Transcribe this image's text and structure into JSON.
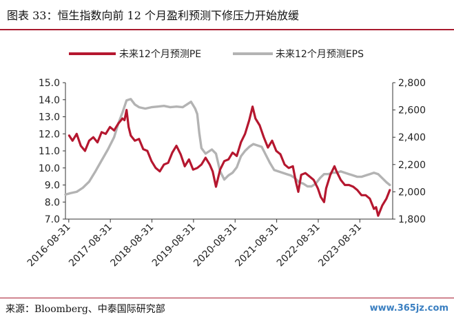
{
  "header": {
    "title": "图表 33：恒生指数向前 12 个月盈利预测下修压力开始放缓"
  },
  "footer": {
    "source": "来源：Bloomberg、中泰国际研究部",
    "watermark": "www.365jz.com"
  },
  "colors": {
    "pe": "#b5172f",
    "eps": "#b3b3b3",
    "accent": "#a8192e"
  },
  "chart_data": {
    "type": "line",
    "title": "",
    "legend_position": "top",
    "x_tick_labels": [
      "2016-08-31",
      "2017-08-31",
      "2018-08-31",
      "2019-08-31",
      "2020-08-31",
      "2021-08-31",
      "2022-08-31",
      "2023-08-31"
    ],
    "x_range": [
      2016.58,
      2024.45
    ],
    "left_axis": {
      "ylim": [
        7.0,
        15.0
      ],
      "tick_labels": [
        "15.0",
        "14.0",
        "13.0",
        "12.0",
        "11.0",
        "10.0",
        "9.0",
        "8.0",
        "7.0"
      ]
    },
    "right_axis": {
      "ylim": [
        1800,
        2800
      ],
      "tick_labels": [
        "2,800",
        "2,600",
        "2,400",
        "2,200",
        "2,000",
        "1,800"
      ]
    },
    "series": [
      {
        "name": "未来12个月预测PE",
        "axis": "left",
        "color": "#b5172f",
        "points": [
          [
            2016.67,
            11.9
          ],
          [
            2016.75,
            11.6
          ],
          [
            2016.85,
            12.0
          ],
          [
            2016.95,
            11.3
          ],
          [
            2017.05,
            11.0
          ],
          [
            2017.15,
            11.6
          ],
          [
            2017.25,
            11.8
          ],
          [
            2017.35,
            11.5
          ],
          [
            2017.45,
            12.1
          ],
          [
            2017.55,
            12.0
          ],
          [
            2017.65,
            12.4
          ],
          [
            2017.75,
            12.2
          ],
          [
            2017.85,
            12.6
          ],
          [
            2017.95,
            12.9
          ],
          [
            2018.0,
            12.8
          ],
          [
            2018.05,
            13.4
          ],
          [
            2018.1,
            12.4
          ],
          [
            2018.15,
            11.9
          ],
          [
            2018.25,
            11.6
          ],
          [
            2018.35,
            11.7
          ],
          [
            2018.45,
            11.1
          ],
          [
            2018.55,
            11.0
          ],
          [
            2018.65,
            10.4
          ],
          [
            2018.75,
            10.0
          ],
          [
            2018.85,
            9.8
          ],
          [
            2018.95,
            10.2
          ],
          [
            2019.05,
            10.3
          ],
          [
            2019.15,
            10.9
          ],
          [
            2019.25,
            11.3
          ],
          [
            2019.35,
            10.8
          ],
          [
            2019.45,
            10.1
          ],
          [
            2019.55,
            10.5
          ],
          [
            2019.65,
            9.9
          ],
          [
            2019.75,
            10.0
          ],
          [
            2019.85,
            10.2
          ],
          [
            2019.95,
            10.6
          ],
          [
            2020.05,
            10.2
          ],
          [
            2020.12,
            9.8
          ],
          [
            2020.2,
            8.9
          ],
          [
            2020.3,
            9.9
          ],
          [
            2020.4,
            10.4
          ],
          [
            2020.5,
            10.5
          ],
          [
            2020.6,
            10.9
          ],
          [
            2020.7,
            10.7
          ],
          [
            2020.8,
            11.5
          ],
          [
            2020.9,
            12.0
          ],
          [
            2021.0,
            12.8
          ],
          [
            2021.08,
            13.6
          ],
          [
            2021.15,
            12.9
          ],
          [
            2021.25,
            12.5
          ],
          [
            2021.35,
            11.8
          ],
          [
            2021.45,
            11.2
          ],
          [
            2021.55,
            11.6
          ],
          [
            2021.65,
            11.0
          ],
          [
            2021.75,
            10.8
          ],
          [
            2021.85,
            10.2
          ],
          [
            2021.95,
            10.0
          ],
          [
            2022.05,
            10.1
          ],
          [
            2022.12,
            9.2
          ],
          [
            2022.18,
            8.6
          ],
          [
            2022.25,
            9.6
          ],
          [
            2022.35,
            9.7
          ],
          [
            2022.45,
            9.5
          ],
          [
            2022.55,
            9.3
          ],
          [
            2022.65,
            8.8
          ],
          [
            2022.72,
            8.3
          ],
          [
            2022.8,
            8.0
          ],
          [
            2022.85,
            8.8
          ],
          [
            2022.95,
            9.6
          ],
          [
            2023.05,
            10.1
          ],
          [
            2023.1,
            9.8
          ],
          [
            2023.2,
            9.3
          ],
          [
            2023.3,
            9.0
          ],
          [
            2023.4,
            9.0
          ],
          [
            2023.5,
            8.9
          ],
          [
            2023.6,
            8.7
          ],
          [
            2023.7,
            8.4
          ],
          [
            2023.8,
            8.4
          ],
          [
            2023.9,
            8.2
          ],
          [
            2024.0,
            7.6
          ],
          [
            2024.05,
            7.7
          ],
          [
            2024.1,
            7.2
          ],
          [
            2024.2,
            7.8
          ],
          [
            2024.3,
            8.2
          ],
          [
            2024.38,
            8.7
          ]
        ]
      },
      {
        "name": "未来12个月预测EPS",
        "axis": "right",
        "color": "#b3b3b3",
        "points": [
          [
            2016.58,
            1980
          ],
          [
            2016.7,
            1990
          ],
          [
            2016.85,
            2000
          ],
          [
            2017.0,
            2030
          ],
          [
            2017.15,
            2075
          ],
          [
            2017.3,
            2150
          ],
          [
            2017.45,
            2230
          ],
          [
            2017.6,
            2310
          ],
          [
            2017.75,
            2400
          ],
          [
            2017.85,
            2500
          ],
          [
            2017.95,
            2580
          ],
          [
            2018.05,
            2670
          ],
          [
            2018.15,
            2680
          ],
          [
            2018.25,
            2640
          ],
          [
            2018.35,
            2620
          ],
          [
            2018.5,
            2610
          ],
          [
            2018.65,
            2620
          ],
          [
            2018.8,
            2625
          ],
          [
            2018.95,
            2630
          ],
          [
            2019.1,
            2620
          ],
          [
            2019.25,
            2625
          ],
          [
            2019.4,
            2620
          ],
          [
            2019.5,
            2640
          ],
          [
            2019.6,
            2660
          ],
          [
            2019.7,
            2610
          ],
          [
            2019.75,
            2570
          ],
          [
            2019.8,
            2430
          ],
          [
            2019.85,
            2320
          ],
          [
            2019.9,
            2300
          ],
          [
            2019.95,
            2280
          ],
          [
            2020.0,
            2290
          ],
          [
            2020.05,
            2300
          ],
          [
            2020.1,
            2310
          ],
          [
            2020.2,
            2280
          ],
          [
            2020.3,
            2150
          ],
          [
            2020.4,
            2090
          ],
          [
            2020.5,
            2120
          ],
          [
            2020.6,
            2140
          ],
          [
            2020.7,
            2180
          ],
          [
            2020.8,
            2260
          ],
          [
            2020.9,
            2300
          ],
          [
            2021.0,
            2330
          ],
          [
            2021.1,
            2350
          ],
          [
            2021.2,
            2340
          ],
          [
            2021.3,
            2330
          ],
          [
            2021.4,
            2270
          ],
          [
            2021.5,
            2210
          ],
          [
            2021.6,
            2160
          ],
          [
            2021.7,
            2150
          ],
          [
            2021.8,
            2140
          ],
          [
            2021.9,
            2130
          ],
          [
            2022.0,
            2120
          ],
          [
            2022.1,
            2100
          ],
          [
            2022.2,
            2070
          ],
          [
            2022.3,
            2060
          ],
          [
            2022.4,
            2040
          ],
          [
            2022.5,
            2040
          ],
          [
            2022.6,
            2060
          ],
          [
            2022.7,
            2100
          ],
          [
            2022.8,
            2130
          ],
          [
            2022.9,
            2130
          ],
          [
            2023.0,
            2140
          ],
          [
            2023.1,
            2140
          ],
          [
            2023.2,
            2150
          ],
          [
            2023.3,
            2140
          ],
          [
            2023.4,
            2130
          ],
          [
            2023.5,
            2120
          ],
          [
            2023.6,
            2110
          ],
          [
            2023.7,
            2110
          ],
          [
            2023.8,
            2120
          ],
          [
            2023.9,
            2130
          ],
          [
            2024.0,
            2140
          ],
          [
            2024.1,
            2130
          ],
          [
            2024.2,
            2100
          ],
          [
            2024.3,
            2070
          ],
          [
            2024.38,
            2050
          ]
        ]
      }
    ]
  }
}
